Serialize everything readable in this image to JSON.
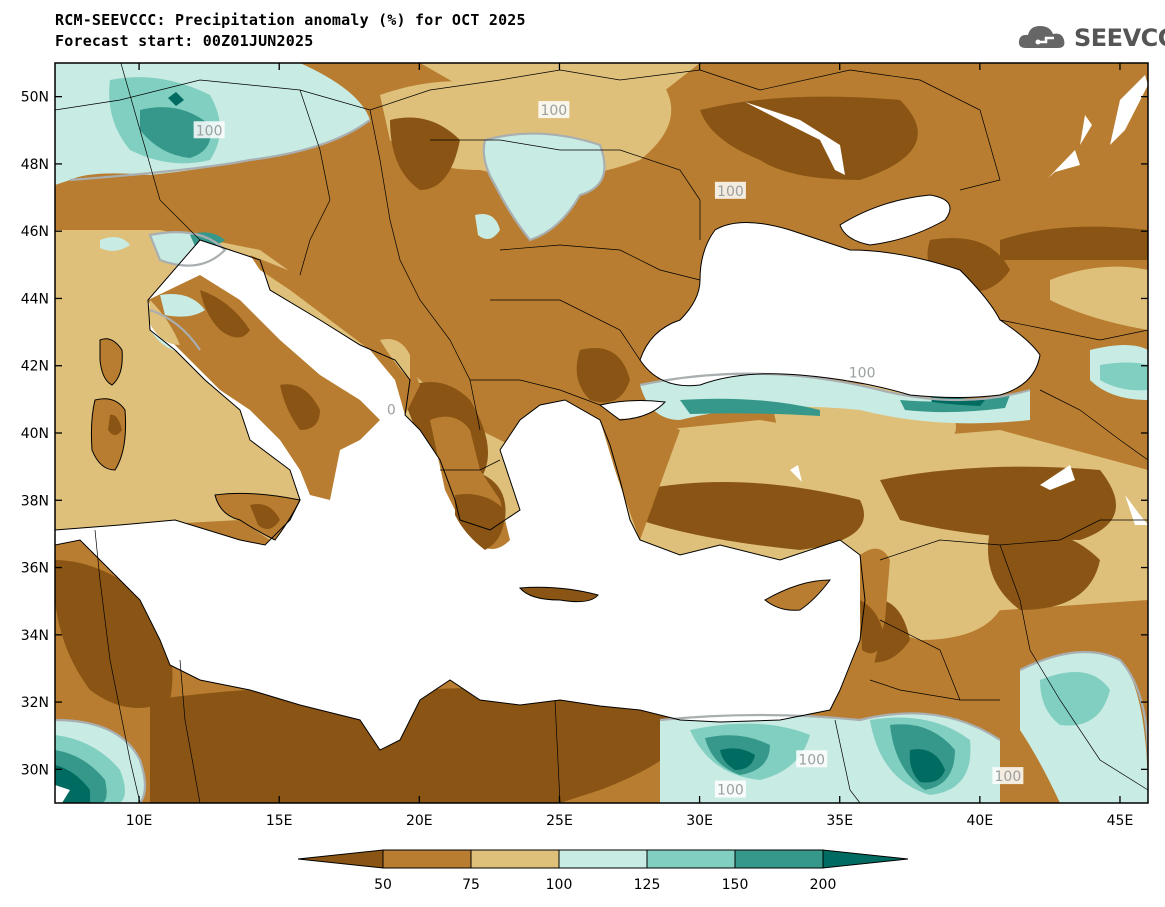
{
  "title": "RCM-SEEVCCC: Precipitation anomaly (%) for OCT 2025",
  "subtitle": "Forecast start: 00Z01JUN2025",
  "logo": {
    "text": "SEEVCCC",
    "icon": "cloud-icon"
  },
  "map": {
    "lon_range": [
      7,
      46
    ],
    "lat_range": [
      29,
      51
    ],
    "lon_ticks": [
      "10E",
      "15E",
      "20E",
      "25E",
      "30E",
      "35E",
      "40E",
      "45E"
    ],
    "lon_tick_values": [
      10,
      15,
      20,
      25,
      30,
      35,
      40,
      45
    ],
    "lat_ticks": [
      "50N",
      "48N",
      "46N",
      "44N",
      "42N",
      "40N",
      "38N",
      "36N",
      "34N",
      "32N",
      "30N"
    ],
    "lat_tick_values": [
      50,
      48,
      46,
      44,
      42,
      40,
      38,
      36,
      34,
      32,
      30
    ],
    "contour_labels": [
      {
        "text": "100",
        "lon": 12.5,
        "lat": 49.0
      },
      {
        "text": "100",
        "lon": 24.8,
        "lat": 49.6
      },
      {
        "text": "100",
        "lon": 31.1,
        "lat": 47.2
      },
      {
        "text": "100",
        "lon": 35.8,
        "lat": 41.8
      },
      {
        "text": "0",
        "lon": 19.0,
        "lat": 40.7
      },
      {
        "text": "100",
        "lon": 34.0,
        "lat": 30.3
      },
      {
        "text": "100",
        "lon": 31.1,
        "lat": 29.4
      },
      {
        "text": "100",
        "lon": 41.0,
        "lat": 29.8
      }
    ]
  },
  "colorbar": {
    "labels": [
      "50",
      "75",
      "100",
      "125",
      "150",
      "200"
    ],
    "colors": [
      "#8a5514",
      "#b87d30",
      "#dfc07a",
      "#c8ebe3",
      "#80cfc0",
      "#36988b",
      "#006b60"
    ]
  }
}
